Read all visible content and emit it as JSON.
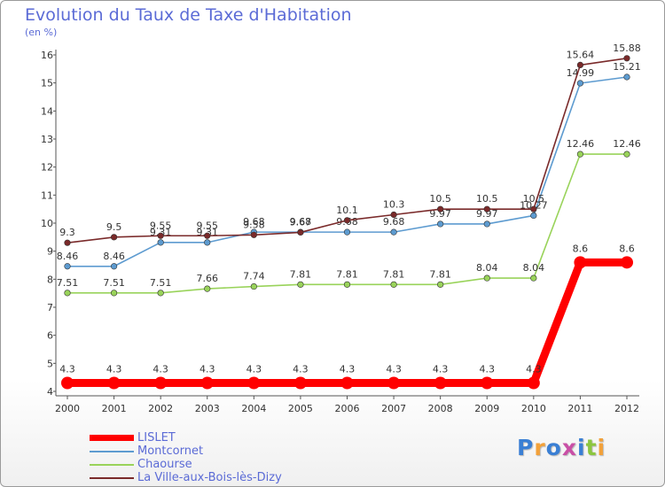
{
  "header": {
    "title": "Evolution du Taux de Taxe d'Habitation",
    "subtitle": "(en %)"
  },
  "logo": {
    "text": "Proxiti",
    "letter_colors": [
      "#3a7fd4",
      "#f2a13a",
      "#3a7fd4",
      "#c94fa6",
      "#3a7fd4",
      "#8cc63f",
      "#f2a13a"
    ]
  },
  "chart_data": {
    "type": "line",
    "x": [
      "2000",
      "2001",
      "2002",
      "2003",
      "2004",
      "2005",
      "2006",
      "2007",
      "2008",
      "2009",
      "2010",
      "2011",
      "2012"
    ],
    "ylim": [
      4,
      16
    ],
    "yticks": [
      "4",
      "5",
      "6",
      "7",
      "8",
      "9",
      "10",
      "11",
      "12",
      "13",
      "14",
      "15",
      "16"
    ],
    "grid": false,
    "legend_position": "bottom-left",
    "series": [
      {
        "name": "LISLET",
        "color": "#ff0000",
        "values": [
          4.3,
          4.3,
          4.3,
          4.3,
          4.3,
          4.3,
          4.3,
          4.3,
          4.3,
          4.3,
          4.3,
          8.6,
          8.6
        ],
        "labels": [
          "4.3",
          "4.3",
          "4.3",
          "4.3",
          "4.3",
          "4.3",
          "4.3",
          "4.3",
          "4.3",
          "4.3",
          "4.3",
          "8.6",
          "8.6"
        ]
      },
      {
        "name": "Montcornet",
        "color": "#5d9bd0",
        "values": [
          8.46,
          8.46,
          9.31,
          9.31,
          9.68,
          9.68,
          9.68,
          9.68,
          9.97,
          9.97,
          10.27,
          14.99,
          15.21
        ],
        "labels": [
          "8.46",
          "8.46",
          "9.31",
          "9.31",
          "9.68",
          "9.68",
          "9.68",
          "9.68",
          "9.97",
          "9.97",
          "10.27",
          "14.99",
          "15.21"
        ]
      },
      {
        "name": "Chaourse",
        "color": "#99d35a",
        "values": [
          7.51,
          7.51,
          7.51,
          7.66,
          7.74,
          7.81,
          7.81,
          7.81,
          7.81,
          8.04,
          8.04,
          12.46,
          12.46
        ],
        "labels": [
          "7.51",
          "7.51",
          "7.51",
          "7.66",
          "7.74",
          "7.81",
          "7.81",
          "7.81",
          "7.81",
          "8.04",
          "8.04",
          "12.46",
          "12.46"
        ]
      },
      {
        "name": "La Ville-aux-Bois-lès-Dizy",
        "color": "#7a2a2a",
        "values": [
          9.3,
          9.5,
          9.55,
          9.55,
          9.58,
          9.67,
          10.1,
          10.3,
          10.5,
          10.5,
          10.5,
          15.64,
          15.88
        ],
        "labels": [
          "9.3",
          "9.5",
          "9.55",
          "9.55",
          "9.58",
          "9.67",
          "10.1",
          "10.3",
          "10.5",
          "10.5",
          "10.5",
          "15.64",
          "15.88"
        ]
      }
    ]
  }
}
